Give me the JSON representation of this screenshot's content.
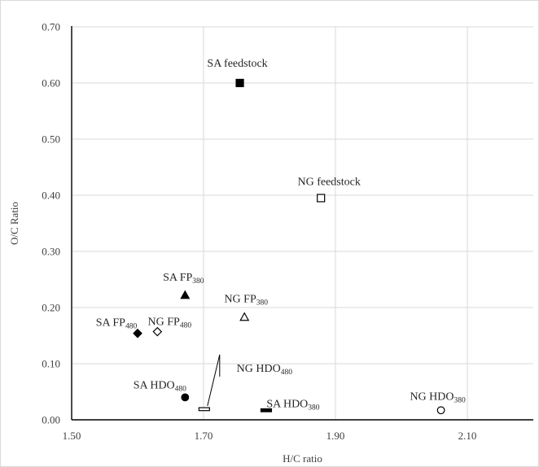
{
  "chart_data": {
    "type": "scatter",
    "title": "",
    "xlabel": "H/C ratio",
    "ylabel": "O/C Ratio",
    "xlim": [
      1.5,
      2.2
    ],
    "ylim": [
      0.0,
      0.7
    ],
    "x_ticks": [
      "1.50",
      "1.70",
      "1.90",
      "2.10"
    ],
    "y_ticks": [
      "0.00",
      "0.10",
      "0.20",
      "0.30",
      "0.40",
      "0.50",
      "0.60",
      "0.70"
    ],
    "grid": true,
    "legend": "none",
    "points": [
      {
        "label": "SA feedstock",
        "sub": "",
        "x": 1.755,
        "y": 0.6,
        "marker": "square-filled"
      },
      {
        "label": "NG feedstock",
        "sub": "",
        "x": 1.878,
        "y": 0.395,
        "marker": "square-open"
      },
      {
        "label": "SA FP",
        "sub": "380",
        "x": 1.672,
        "y": 0.222,
        "marker": "triangle-filled"
      },
      {
        "label": "NG FP",
        "sub": "380",
        "x": 1.762,
        "y": 0.183,
        "marker": "triangle-open"
      },
      {
        "label": "SA FP",
        "sub": "480",
        "x": 1.6,
        "y": 0.154,
        "marker": "diamond-filled"
      },
      {
        "label": "NG FP",
        "sub": "480",
        "x": 1.63,
        "y": 0.157,
        "marker": "diamond-open"
      },
      {
        "label": "SA HDO",
        "sub": "480",
        "x": 1.672,
        "y": 0.04,
        "marker": "circle-filled"
      },
      {
        "label": "NG HDO",
        "sub": "480",
        "x": 1.701,
        "y": 0.019,
        "marker": "dash-open"
      },
      {
        "label": "SA HDO",
        "sub": "380",
        "x": 1.795,
        "y": 0.017,
        "marker": "dash-filled"
      },
      {
        "label": "NG HDO",
        "sub": "380",
        "x": 2.06,
        "y": 0.017,
        "marker": "circle-open"
      }
    ]
  }
}
